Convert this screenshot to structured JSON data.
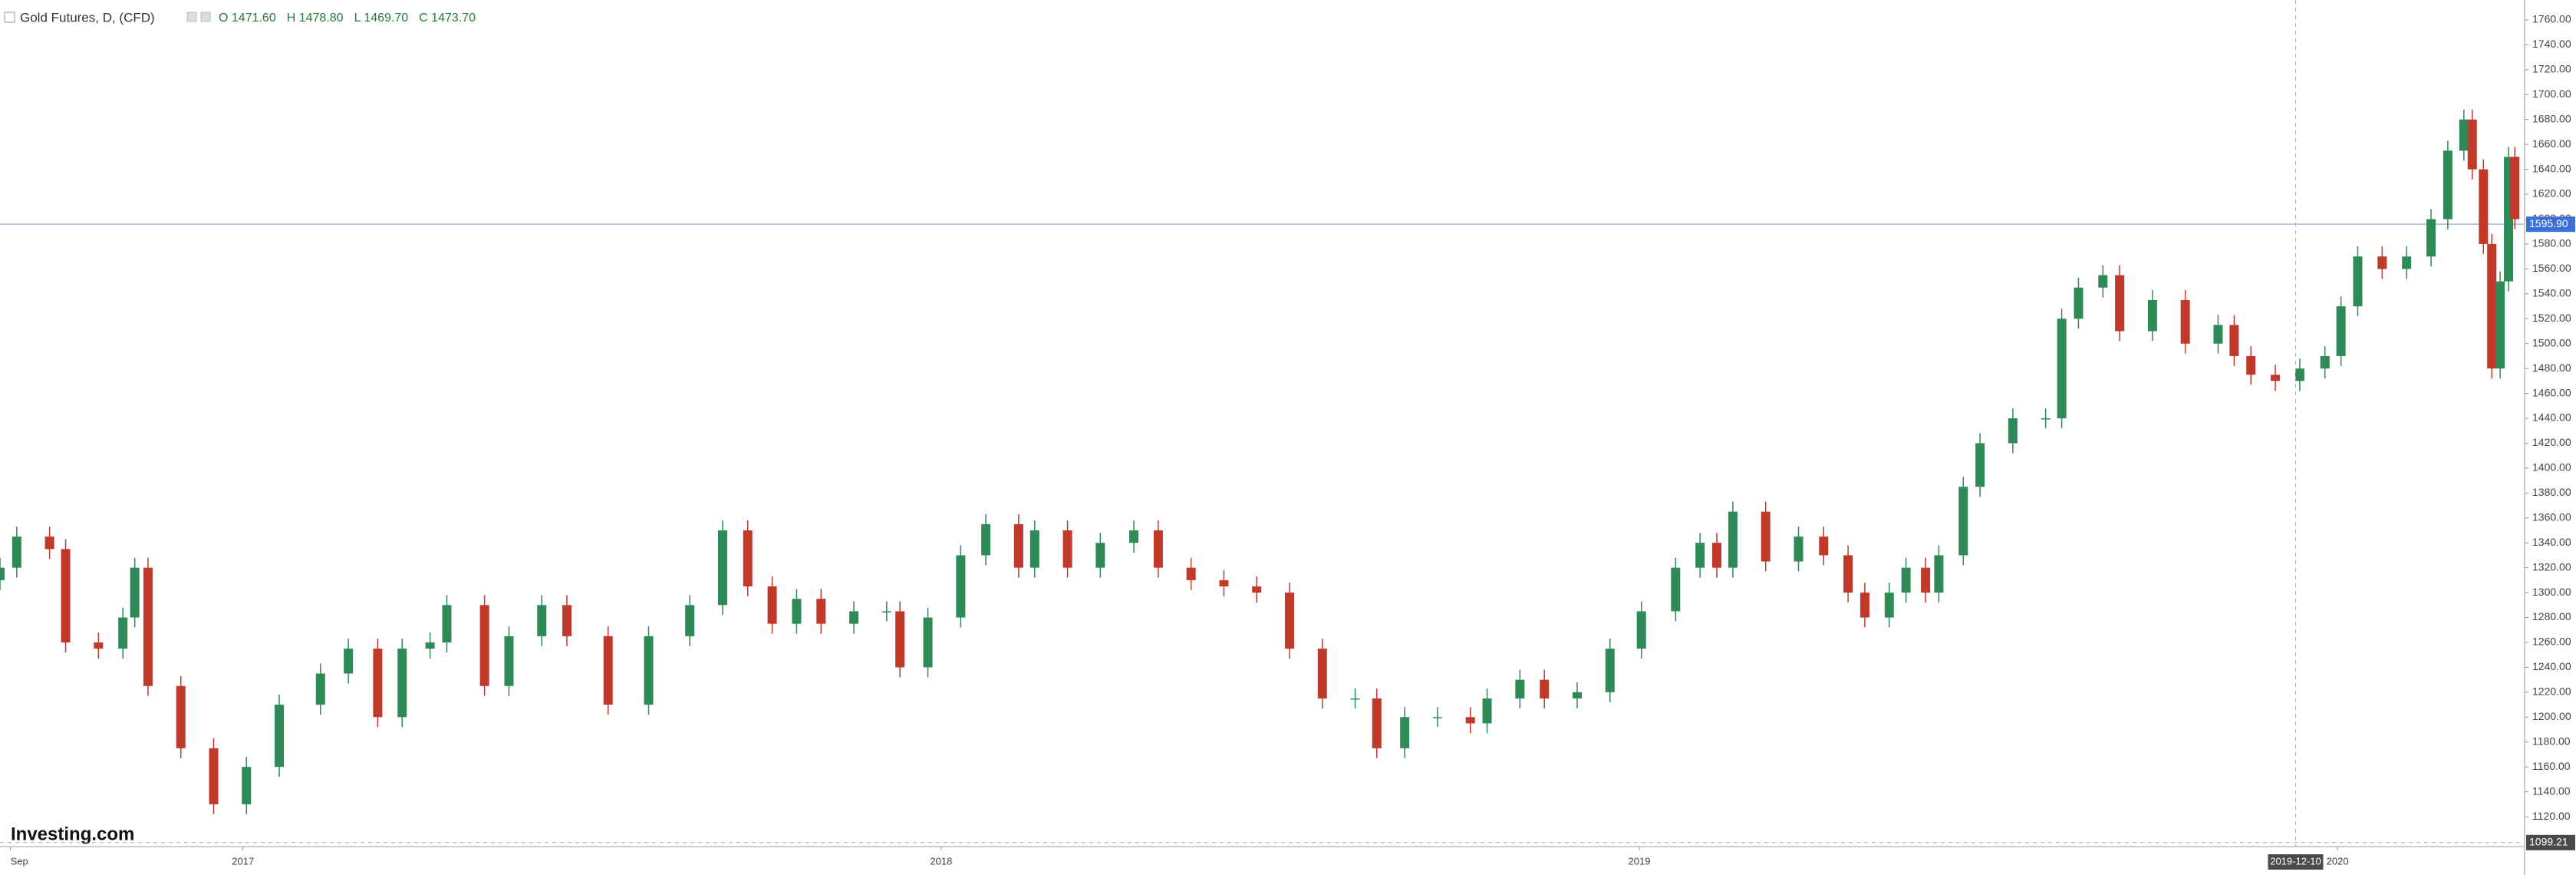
{
  "chart_data": {
    "type": "candlestick",
    "title": "Gold Futures, D, (CFD)",
    "legend_text": [
      "O 1471.60",
      "H 1478.80",
      "L 1469.70",
      "C 1473.70"
    ],
    "logo": "Investing.com",
    "up_color": "#2e8b57",
    "down_color": "#c0392b",
    "grid": false,
    "xlim": [
      2016.652,
      2020.268
    ],
    "xticks": [
      {
        "value": 2016.667,
        "label": "Sep"
      },
      2017,
      2018,
      2019,
      2020
    ],
    "ylim": [
      1096,
      1776
    ],
    "yticks": [
      {
        "value": 1120,
        "label": "1120.00"
      },
      {
        "value": 1140,
        "label": "1140.00"
      },
      {
        "value": 1160,
        "label": "1160.00"
      },
      {
        "value": 1180,
        "label": "1180.00"
      },
      {
        "value": 1200,
        "label": "1200.00"
      },
      {
        "value": 1220,
        "label": "1220.00"
      },
      {
        "value": 1240,
        "label": "1240.00"
      },
      {
        "value": 1260,
        "label": "1260.00"
      },
      {
        "value": 1280,
        "label": "1280.00"
      },
      {
        "value": 1300,
        "label": "1300.00"
      },
      {
        "value": 1320,
        "label": "1320.00"
      },
      {
        "value": 1340,
        "label": "1340.00"
      },
      {
        "value": 1360,
        "label": "1360.00"
      },
      {
        "value": 1380,
        "label": "1380.00"
      },
      {
        "value": 1400,
        "label": "1400.00"
      },
      {
        "value": 1420,
        "label": "1420.00"
      },
      {
        "value": 1440,
        "label": "1440.00"
      },
      {
        "value": 1460,
        "label": "1460.00"
      },
      {
        "value": 1480,
        "label": "1480.00"
      },
      {
        "value": 1500,
        "label": "1500.00"
      },
      {
        "value": 1520,
        "label": "1520.00"
      },
      {
        "value": 1540,
        "label": "1540.00"
      },
      {
        "value": 1560,
        "label": "1560.00"
      },
      {
        "value": 1580,
        "label": "1580.00"
      },
      {
        "value": 1600,
        "label": "1600.00"
      },
      {
        "value": 1620,
        "label": "1620.00"
      },
      {
        "value": 1640,
        "label": "1640.00"
      },
      {
        "value": 1660,
        "label": "1660.00"
      },
      {
        "value": 1680,
        "label": "1680.00"
      },
      {
        "value": 1700,
        "label": "1700.00"
      },
      {
        "value": 1720,
        "label": "1720.00"
      },
      {
        "value": 1740,
        "label": "1740.00"
      },
      {
        "value": 1760,
        "label": "1760.00"
      }
    ],
    "last_price": {
      "value": 1595.9,
      "label": "1595.90",
      "color": "#3b6fd8"
    },
    "crosshair": {
      "x": 2019.94,
      "x_label": "2019-12-10",
      "y": 1099.21,
      "y_label": "1099.21"
    },
    "x": [
      2016.652,
      2016.676,
      2016.723,
      2016.746,
      2016.793,
      2016.828,
      2016.845,
      2016.864,
      2016.911,
      2016.958,
      2017.005,
      2017.052,
      2017.111,
      2017.151,
      2017.193,
      2017.228,
      2017.268,
      2017.292,
      2017.346,
      2017.381,
      2017.428,
      2017.464,
      2017.523,
      2017.581,
      2017.64,
      2017.687,
      2017.723,
      2017.758,
      2017.793,
      2017.828,
      2017.875,
      2017.922,
      2017.941,
      2017.981,
      2018.028,
      2018.064,
      2018.111,
      2018.134,
      2018.181,
      2018.228,
      2018.276,
      2018.311,
      2018.358,
      2018.405,
      2018.452,
      2018.499,
      2018.546,
      2018.593,
      2018.624,
      2018.664,
      2018.711,
      2018.758,
      2018.782,
      2018.829,
      2018.864,
      2018.911,
      2018.958,
      2019.003,
      2019.052,
      2019.087,
      2019.111,
      2019.134,
      2019.181,
      2019.228,
      2019.264,
      2019.299,
      2019.323,
      2019.358,
      2019.382,
      2019.41,
      2019.429,
      2019.464,
      2019.488,
      2019.535,
      2019.582,
      2019.605,
      2019.629,
      2019.664,
      2019.688,
      2019.735,
      2019.782,
      2019.829,
      2019.852,
      2019.876,
      2019.911,
      2019.946,
      2019.982,
      2020.005,
      2020.029,
      2020.064,
      2020.099,
      2020.134,
      2020.158,
      2020.181,
      2020.193,
      2020.209,
      2020.221,
      2020.233,
      2020.245,
      2020.254
    ],
    "open": [
      1310,
      1320,
      1345,
      1335,
      1260,
      1255,
      1280,
      1320,
      1225,
      1175,
      1130,
      1160,
      1210,
      1235,
      1255,
      1200,
      1255,
      1260,
      1290,
      1225,
      1265,
      1290,
      1265,
      1210,
      1265,
      1290,
      1350,
      1305,
      1275,
      1295,
      1275,
      1285,
      1285,
      1240,
      1280,
      1330,
      1355,
      1320,
      1350,
      1320,
      1340,
      1350,
      1320,
      1310,
      1305,
      1300,
      1255,
      1215,
      1215,
      1175,
      1200,
      1200,
      1195,
      1215,
      1230,
      1215,
      1220,
      1255,
      1285,
      1320,
      1340,
      1320,
      1365,
      1325,
      1345,
      1330,
      1300,
      1280,
      1300,
      1320,
      1300,
      1330,
      1385,
      1420,
      1440,
      1440,
      1520,
      1545,
      1555,
      1510,
      1535,
      1500,
      1515,
      1490,
      1475,
      1470,
      1480,
      1490,
      1530,
      1570,
      1560,
      1570,
      1600,
      1655,
      1680,
      1640,
      1580,
      1480,
      1550,
      1650
    ],
    "high": [
      1328,
      1353,
      1353,
      1343,
      1268,
      1288,
      1328,
      1328,
      1233,
      1183,
      1168,
      1218,
      1243,
      1263,
      1263,
      1263,
      1268,
      1298,
      1298,
      1273,
      1298,
      1298,
      1273,
      1273,
      1298,
      1358,
      1358,
      1313,
      1303,
      1303,
      1293,
      1293,
      1293,
      1288,
      1338,
      1363,
      1363,
      1358,
      1358,
      1348,
      1358,
      1358,
      1328,
      1318,
      1313,
      1308,
      1263,
      1223,
      1223,
      1208,
      1208,
      1208,
      1223,
      1238,
      1238,
      1228,
      1263,
      1293,
      1328,
      1348,
      1348,
      1373,
      1373,
      1353,
      1353,
      1338,
      1308,
      1308,
      1328,
      1328,
      1338,
      1393,
      1428,
      1448,
      1448,
      1528,
      1553,
      1563,
      1563,
      1543,
      1543,
      1523,
      1523,
      1498,
      1483,
      1488,
      1498,
      1538,
      1578,
      1578,
      1578,
      1608,
      1663,
      1688,
      1688,
      1648,
      1588,
      1558,
      1658,
      1658
    ],
    "low": [
      1302,
      1312,
      1327,
      1252,
      1247,
      1247,
      1272,
      1217,
      1167,
      1122,
      1122,
      1152,
      1202,
      1227,
      1192,
      1192,
      1247,
      1252,
      1217,
      1217,
      1257,
      1257,
      1202,
      1202,
      1257,
      1282,
      1297,
      1267,
      1267,
      1267,
      1267,
      1277,
      1232,
      1232,
      1272,
      1322,
      1312,
      1312,
      1312,
      1312,
      1332,
      1312,
      1302,
      1297,
      1292,
      1247,
      1207,
      1207,
      1167,
      1167,
      1192,
      1187,
      1187,
      1207,
      1207,
      1207,
      1212,
      1247,
      1277,
      1312,
      1312,
      1312,
      1317,
      1317,
      1322,
      1292,
      1272,
      1272,
      1292,
      1292,
      1292,
      1322,
      1377,
      1412,
      1432,
      1432,
      1512,
      1537,
      1502,
      1502,
      1492,
      1492,
      1482,
      1467,
      1462,
      1462,
      1472,
      1482,
      1522,
      1552,
      1552,
      1562,
      1592,
      1647,
      1632,
      1572,
      1472,
      1472,
      1542,
      1592
    ],
    "close": [
      1320,
      1345,
      1335,
      1260,
      1255,
      1280,
      1320,
      1225,
      1175,
      1130,
      1160,
      1210,
      1235,
      1255,
      1200,
      1255,
      1260,
      1290,
      1225,
      1265,
      1290,
      1265,
      1210,
      1265,
      1290,
      1350,
      1305,
      1275,
      1295,
      1275,
      1285,
      1285,
      1240,
      1280,
      1330,
      1355,
      1320,
      1350,
      1320,
      1340,
      1350,
      1320,
      1310,
      1305,
      1300,
      1255,
      1215,
      1215,
      1175,
      1200,
      1200,
      1195,
      1215,
      1230,
      1215,
      1220,
      1255,
      1285,
      1320,
      1340,
      1320,
      1365,
      1325,
      1345,
      1330,
      1300,
      1280,
      1300,
      1320,
      1300,
      1330,
      1385,
      1420,
      1440,
      1440,
      1520,
      1545,
      1555,
      1510,
      1535,
      1500,
      1515,
      1490,
      1475,
      1470,
      1480,
      1490,
      1530,
      1570,
      1560,
      1570,
      1600,
      1655,
      1680,
      1640,
      1580,
      1480,
      1550,
      1650,
      1600
    ]
  }
}
